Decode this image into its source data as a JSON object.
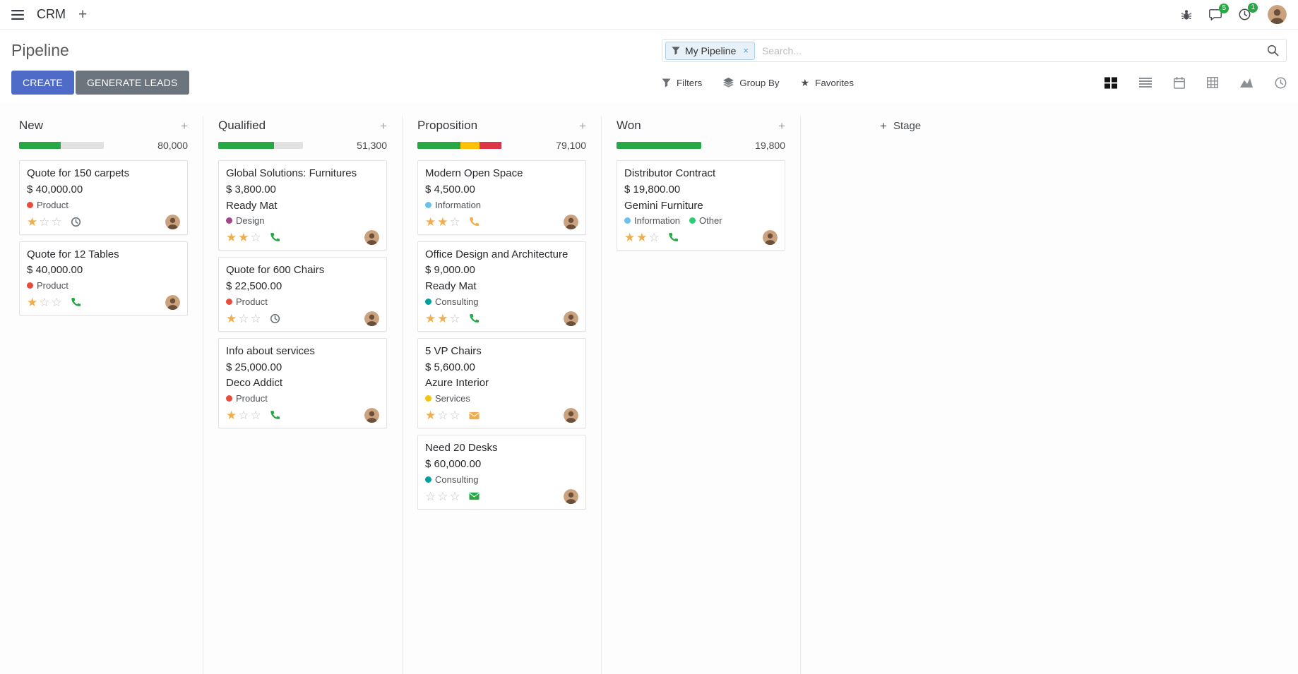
{
  "theme": {
    "primary": "#4e6bc8",
    "secondary": "#6c757d",
    "success": "#28a745",
    "warning": "#ffc107",
    "danger": "#dc3545",
    "muted": "#6c757d"
  },
  "icons": {
    "plus": "+",
    "remove": "×",
    "star_filled": "★",
    "star_empty": "☆"
  },
  "navbar": {
    "app_name": "CRM",
    "messages_badge": "5",
    "activities_badge": "1"
  },
  "control_panel": {
    "title": "Pipeline",
    "create_label": "CREATE",
    "generate_leads_label": "GENERATE LEADS",
    "search": {
      "facet": "My Pipeline",
      "placeholder": "Search..."
    },
    "filters_label": "Filters",
    "group_by_label": "Group By",
    "favorites_label": "Favorites"
  },
  "board": {
    "add_stage_label": "Stage",
    "columns": [
      {
        "title": "New",
        "total": "80,000",
        "progress": [
          {
            "color": "#28a745",
            "pct": 49
          }
        ],
        "cards": [
          {
            "title": "Quote for 150 carpets",
            "amount": "$ 40,000.00",
            "tags": [
              {
                "label": "Product",
                "color": "#e74c3c"
              }
            ],
            "stars": 1,
            "activity": {
              "icon": "clock",
              "color": "#6c757d"
            }
          },
          {
            "title": "Quote for 12 Tables",
            "amount": "$ 40,000.00",
            "tags": [
              {
                "label": "Product",
                "color": "#e74c3c"
              }
            ],
            "stars": 1,
            "activity": {
              "icon": "phone",
              "color": "#28a745"
            }
          }
        ]
      },
      {
        "title": "Qualified",
        "total": "51,300",
        "progress": [
          {
            "color": "#28a745",
            "pct": 66
          }
        ],
        "cards": [
          {
            "title": "Global Solutions: Furnitures",
            "amount": "$ 3,800.00",
            "partner": "Ready Mat",
            "tags": [
              {
                "label": "Design",
                "color": "#a24689"
              }
            ],
            "stars": 2,
            "activity": {
              "icon": "phone",
              "color": "#28a745"
            }
          },
          {
            "title": "Quote for 600 Chairs",
            "amount": "$ 22,500.00",
            "tags": [
              {
                "label": "Product",
                "color": "#e74c3c"
              }
            ],
            "stars": 1,
            "activity": {
              "icon": "clock",
              "color": "#6c757d"
            }
          },
          {
            "title": "Info about services",
            "amount": "$ 25,000.00",
            "partner": "Deco Addict",
            "tags": [
              {
                "label": "Product",
                "color": "#e74c3c"
              }
            ],
            "stars": 1,
            "activity": {
              "icon": "phone",
              "color": "#28a745"
            }
          }
        ]
      },
      {
        "title": "Proposition",
        "total": "79,100",
        "progress": [
          {
            "color": "#28a745",
            "pct": 51
          },
          {
            "color": "#ffc107",
            "pct": 23
          },
          {
            "color": "#dc3545",
            "pct": 26
          }
        ],
        "cards": [
          {
            "title": "Modern Open Space",
            "amount": "$ 4,500.00",
            "tags": [
              {
                "label": "Information",
                "color": "#6cc1ec"
              }
            ],
            "stars": 2,
            "activity": {
              "icon": "phone",
              "color": "#f0ad4e"
            }
          },
          {
            "title": "Office Design and Architecture",
            "amount": "$ 9,000.00",
            "partner": "Ready Mat",
            "tags": [
              {
                "label": "Consulting",
                "color": "#00a09d"
              }
            ],
            "stars": 2,
            "activity": {
              "icon": "phone",
              "color": "#28a745"
            }
          },
          {
            "title": "5 VP Chairs",
            "amount": "$ 5,600.00",
            "partner": "Azure Interior",
            "tags": [
              {
                "label": "Services",
                "color": "#f1c40f"
              }
            ],
            "stars": 1,
            "activity": {
              "icon": "envelope",
              "color": "#f0ad4e"
            }
          },
          {
            "title": "Need 20 Desks",
            "amount": "$ 60,000.00",
            "tags": [
              {
                "label": "Consulting",
                "color": "#00a09d"
              }
            ],
            "stars": 0,
            "activity": {
              "icon": "envelope",
              "color": "#28a745"
            }
          }
        ]
      },
      {
        "title": "Won",
        "total": "19,800",
        "progress": [
          {
            "color": "#28a745",
            "pct": 100
          }
        ],
        "cards": [
          {
            "title": "Distributor Contract",
            "amount": "$ 19,800.00",
            "partner": "Gemini Furniture",
            "tags": [
              {
                "label": "Information",
                "color": "#6cc1ec"
              },
              {
                "label": "Other",
                "color": "#2ecc71"
              }
            ],
            "stars": 2,
            "activity": {
              "icon": "phone",
              "color": "#28a745"
            }
          }
        ]
      }
    ]
  }
}
